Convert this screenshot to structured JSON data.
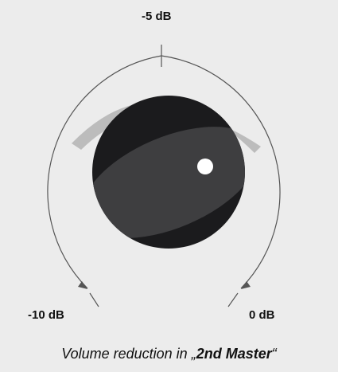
{
  "knob": {
    "name": "volume-reduction-knob",
    "value_db": -5,
    "min_db": -10,
    "max_db": 0
  },
  "scale": {
    "top_label": "-5 dB",
    "left_label": "-10 dB",
    "right_label": "0 dB"
  },
  "caption": {
    "prefix": "Volume reduction in ",
    "open_quote": "„",
    "target": "2nd Master",
    "close_quote": "“"
  },
  "colors": {
    "background": "#ececec",
    "scale_line": "#555555",
    "level_arc": "#bcbcbc",
    "knob_body": "#1b1b1d",
    "knob_highlight": "#3e3e40",
    "indicator_dot": "#ffffff"
  },
  "icons": {
    "indicator": "dot-indicator",
    "arrows": "arc-arrow-head"
  }
}
